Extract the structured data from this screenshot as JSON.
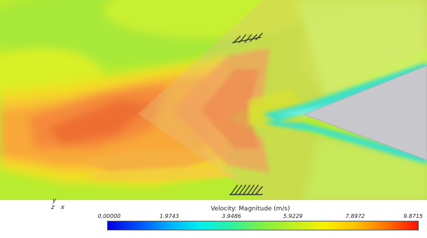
{
  "legend": {
    "title": "Velocity: Magnitude (m/s)",
    "ticks": [
      "0.00000",
      "1.9743",
      "3.9486",
      "5.9229",
      "7.8972",
      "9.8715"
    ],
    "colormap": "blue-cyan-green-yellow-red"
  },
  "axes_triad": {
    "y": "y",
    "z": "z",
    "x": "x"
  },
  "colors": {
    "body_fill": "#c8c8cc",
    "background_field": "#c0f020",
    "high_velocity": "#ff7020",
    "wake": "#60e0d0"
  }
}
